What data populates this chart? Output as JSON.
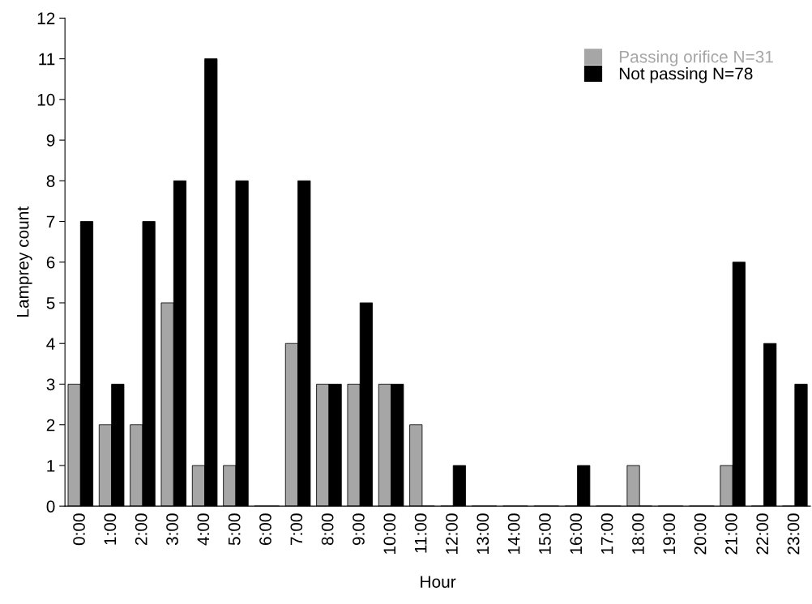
{
  "chart_data": {
    "type": "bar",
    "xlabel": "Hour",
    "ylabel": "Lamprey count",
    "categories": [
      "0:00",
      "1:00",
      "2:00",
      "3:00",
      "4:00",
      "5:00",
      "6:00",
      "7:00",
      "8:00",
      "9:00",
      "10:00",
      "11:00",
      "12:00",
      "13:00",
      "14:00",
      "15:00",
      "16:00",
      "17:00",
      "18:00",
      "19:00",
      "20:00",
      "21:00",
      "22:00",
      "23:00"
    ],
    "series": [
      {
        "name": "Passing orifice N=31",
        "color": "#a6a6a6",
        "values": [
          3,
          2,
          2,
          5,
          1,
          1,
          0,
          4,
          3,
          3,
          3,
          2,
          0,
          0,
          0,
          0,
          0,
          0,
          1,
          0,
          0,
          1,
          0,
          0
        ]
      },
      {
        "name": "Not passing N=78",
        "color": "#000000",
        "values": [
          7,
          3,
          7,
          8,
          11,
          8,
          0,
          8,
          3,
          5,
          3,
          0,
          1,
          0,
          0,
          0,
          1,
          0,
          0,
          0,
          0,
          6,
          4,
          3
        ]
      }
    ],
    "ylim": [
      0,
      12
    ],
    "yticks": [
      0,
      1,
      2,
      3,
      4,
      5,
      6,
      7,
      8,
      9,
      10,
      11,
      12
    ],
    "grid": false,
    "legend": "top right"
  }
}
